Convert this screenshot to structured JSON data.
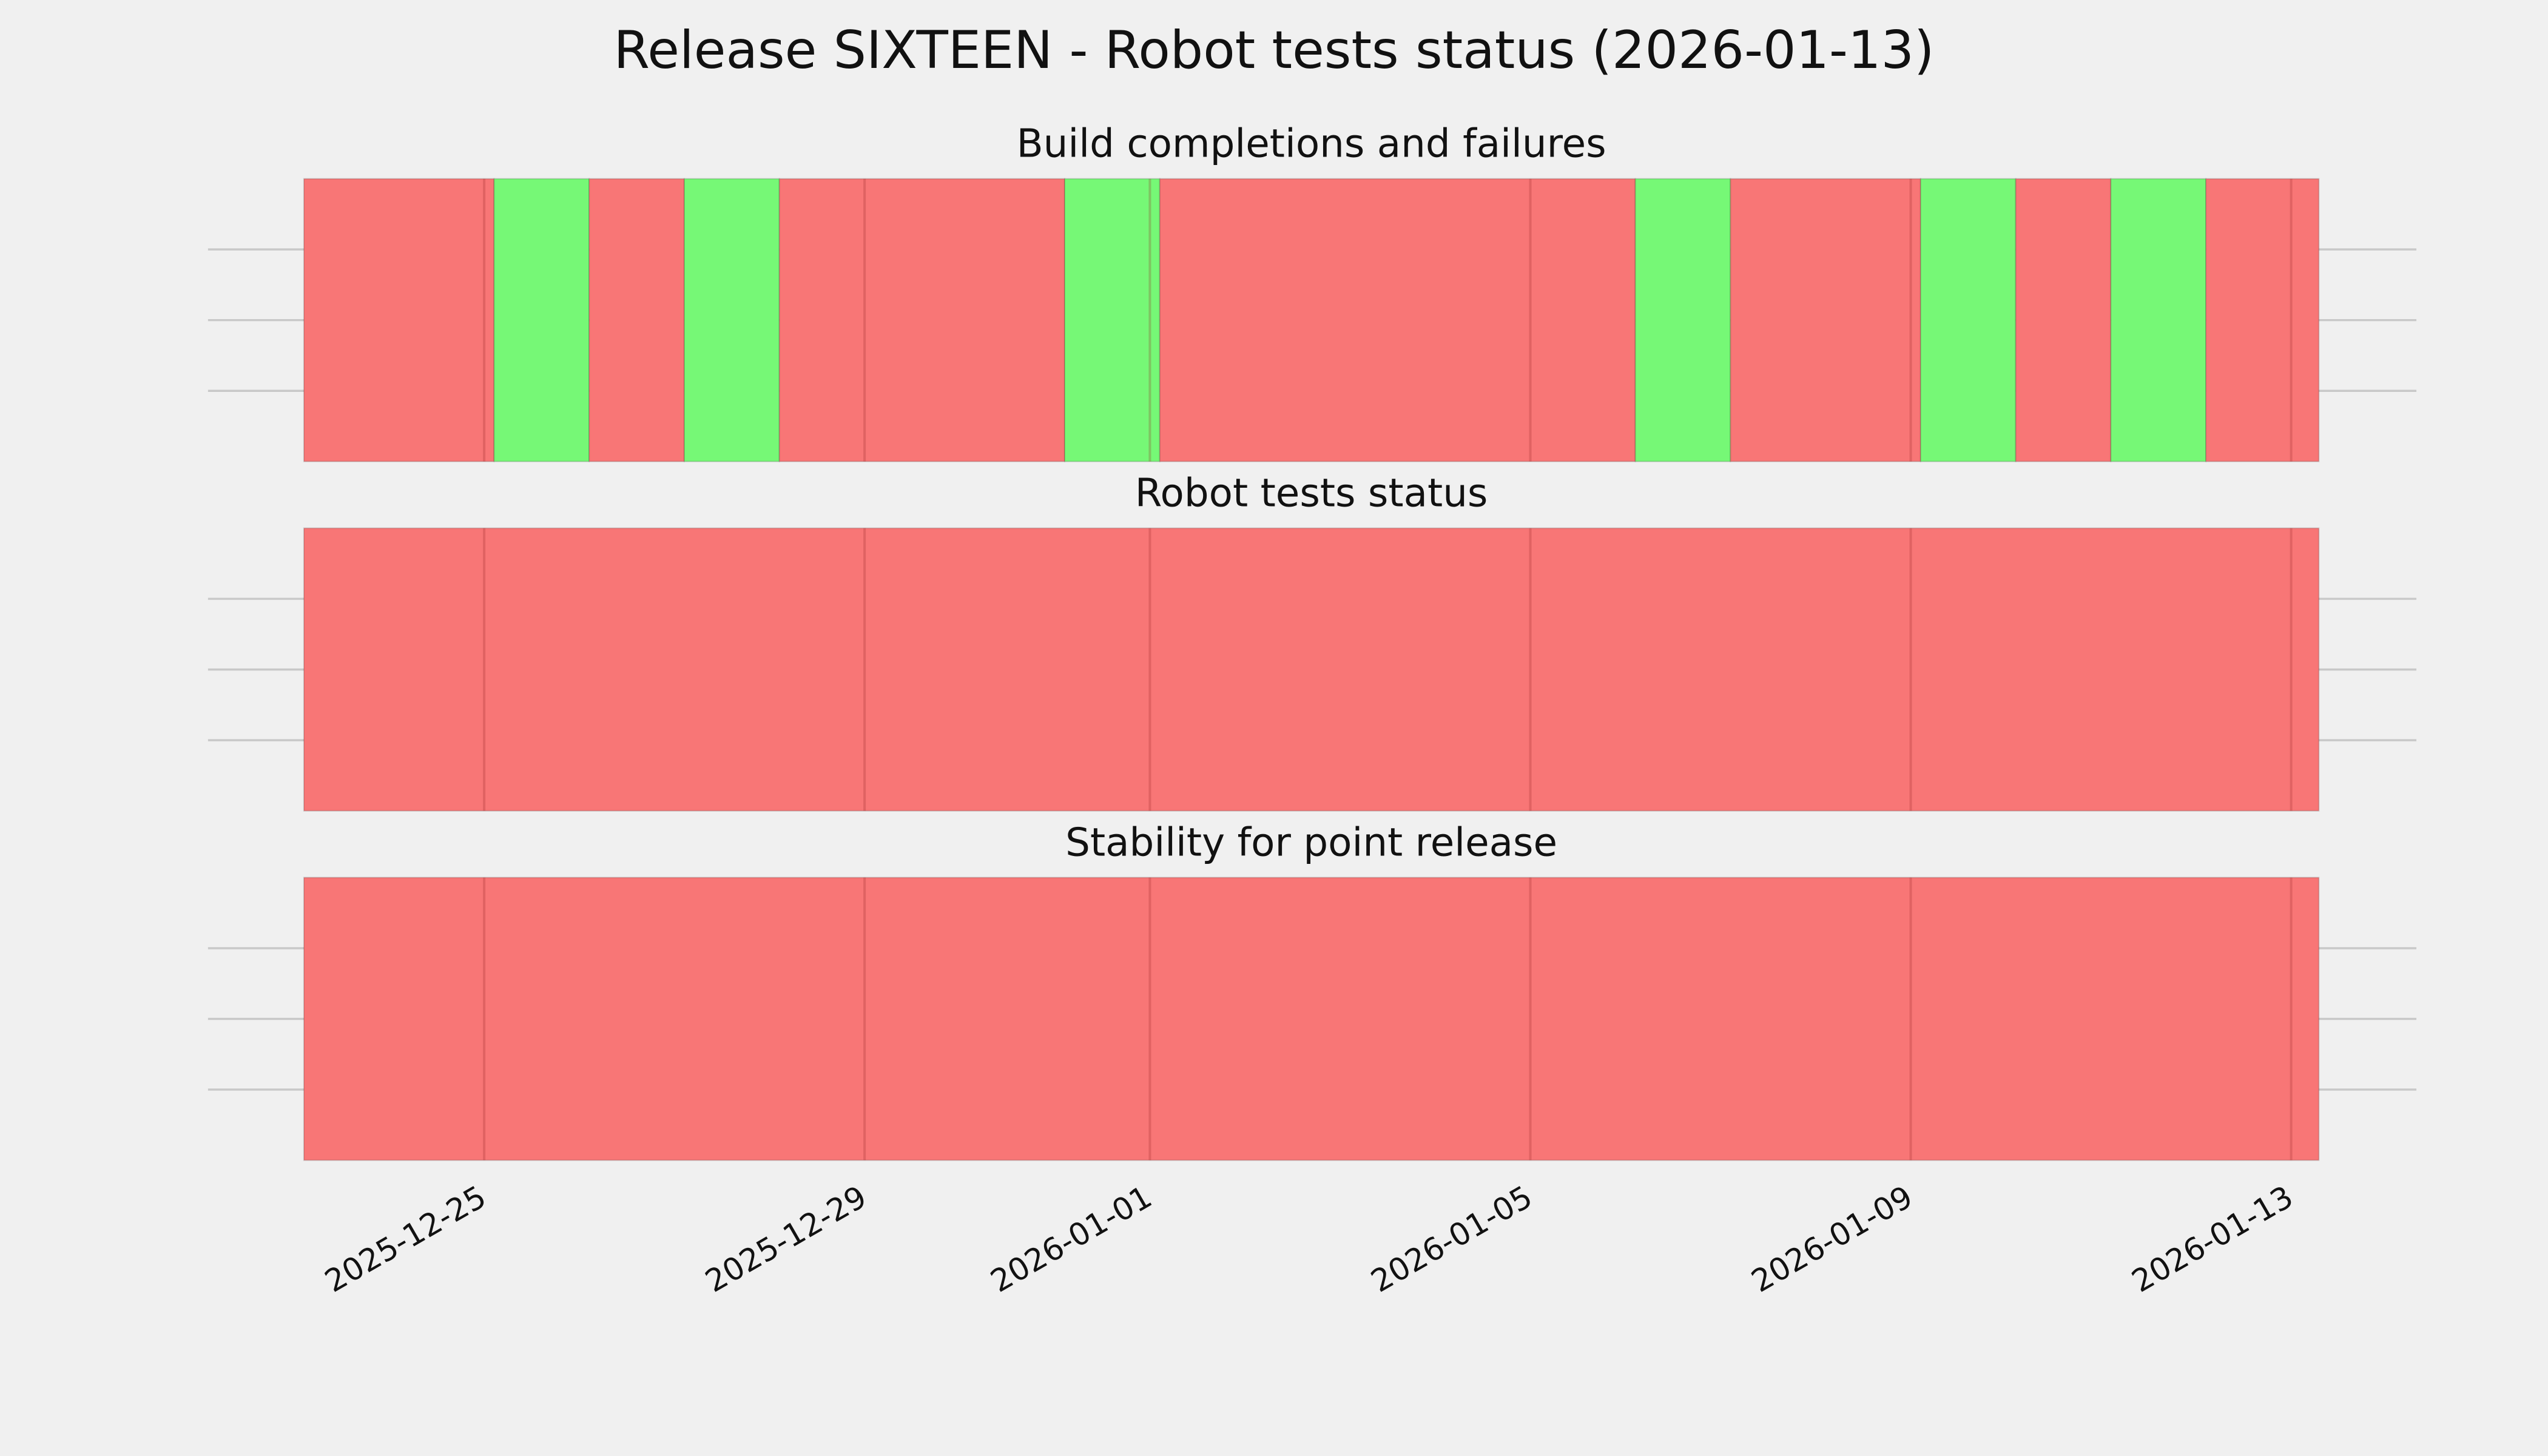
{
  "title": "Release SIXTEEN - Robot tests status (2026-01-13)",
  "chart_data": [
    {
      "type": "span",
      "title": "Build completions and failures",
      "xlim": [
        "2025-12-23T02:30",
        "2026-01-13T07:00"
      ],
      "xticks": [
        "2025-12-25",
        "2025-12-29",
        "2026-01-01",
        "2026-01-05",
        "2026-01-09",
        "2026-01-13"
      ],
      "ylim": [
        0,
        1
      ],
      "yticks": [
        0.25,
        0.5,
        0.75
      ],
      "grid": true,
      "spans": [
        {
          "start": "2025-12-23T02:30",
          "end": "2025-12-25T02:30",
          "color": "#f87676"
        },
        {
          "start": "2025-12-25T02:30",
          "end": "2025-12-26T02:30",
          "color": "#76f876"
        },
        {
          "start": "2025-12-26T02:30",
          "end": "2025-12-27T02:30",
          "color": "#f87676"
        },
        {
          "start": "2025-12-27T02:30",
          "end": "2025-12-28T02:30",
          "color": "#76f876"
        },
        {
          "start": "2025-12-28T02:30",
          "end": "2025-12-31T02:30",
          "color": "#f87676"
        },
        {
          "start": "2025-12-31T02:30",
          "end": "2026-01-01T02:30",
          "color": "#76f876"
        },
        {
          "start": "2026-01-01T02:30",
          "end": "2026-01-06T02:30",
          "color": "#f87676"
        },
        {
          "start": "2026-01-06T02:30",
          "end": "2026-01-07T02:30",
          "color": "#76f876"
        },
        {
          "start": "2026-01-07T02:30",
          "end": "2026-01-09T02:30",
          "color": "#f87676"
        },
        {
          "start": "2026-01-09T02:30",
          "end": "2026-01-10T02:30",
          "color": "#76f876"
        },
        {
          "start": "2026-01-10T02:30",
          "end": "2026-01-11T02:30",
          "color": "#f87676"
        },
        {
          "start": "2026-01-11T02:30",
          "end": "2026-01-12T02:30",
          "color": "#76f876"
        },
        {
          "start": "2026-01-12T02:30",
          "end": "2026-01-13T07:00",
          "color": "#f87676"
        }
      ]
    },
    {
      "type": "span",
      "title": "Robot tests status",
      "xlim": [
        "2025-12-23T02:30",
        "2026-01-13T07:00"
      ],
      "xticks": [
        "2025-12-25",
        "2025-12-29",
        "2026-01-01",
        "2026-01-05",
        "2026-01-09",
        "2026-01-13"
      ],
      "ylim": [
        0,
        1
      ],
      "yticks": [
        0.25,
        0.5,
        0.75
      ],
      "grid": true,
      "spans": [
        {
          "start": "2025-12-23T02:30",
          "end": "2026-01-13T07:00",
          "color": "#f87676"
        }
      ]
    },
    {
      "type": "span",
      "title": "Stability for point release",
      "xlim": [
        "2025-12-23T02:30",
        "2026-01-13T07:00"
      ],
      "xticks": [
        "2025-12-25",
        "2025-12-29",
        "2026-01-01",
        "2026-01-05",
        "2026-01-09",
        "2026-01-13"
      ],
      "ylim": [
        0,
        1
      ],
      "yticks": [
        0.25,
        0.5,
        0.75
      ],
      "grid": true,
      "tick_labels": true,
      "spans": [
        {
          "start": "2025-12-23T02:30",
          "end": "2026-01-13T07:00",
          "color": "#f87676"
        }
      ]
    }
  ]
}
